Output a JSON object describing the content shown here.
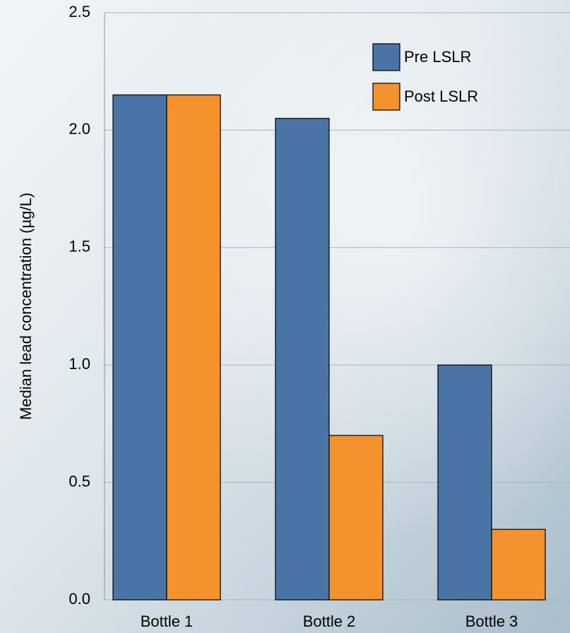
{
  "chart_data": {
    "type": "bar",
    "y_label": "Median lead concentration (µg/L)",
    "categories": [
      "Bottle 1",
      "Bottle 2",
      "Bottle 3"
    ],
    "series": [
      {
        "name": "Pre LSLR",
        "color": "#4a74a6",
        "values": [
          2.15,
          2.05,
          1.0
        ]
      },
      {
        "name": "Post LSLR",
        "color": "#f4922e",
        "values": [
          2.15,
          0.7,
          0.3
        ]
      }
    ],
    "ylim": [
      0,
      2.5
    ],
    "yticks": [
      {
        "value": 0,
        "label": "0.0"
      },
      0.5,
      {
        "value": 1,
        "label": "1.0"
      },
      1.5,
      {
        "value": 2,
        "label": "2.0"
      },
      2.5
    ],
    "grid": true,
    "legend": "upper right"
  }
}
